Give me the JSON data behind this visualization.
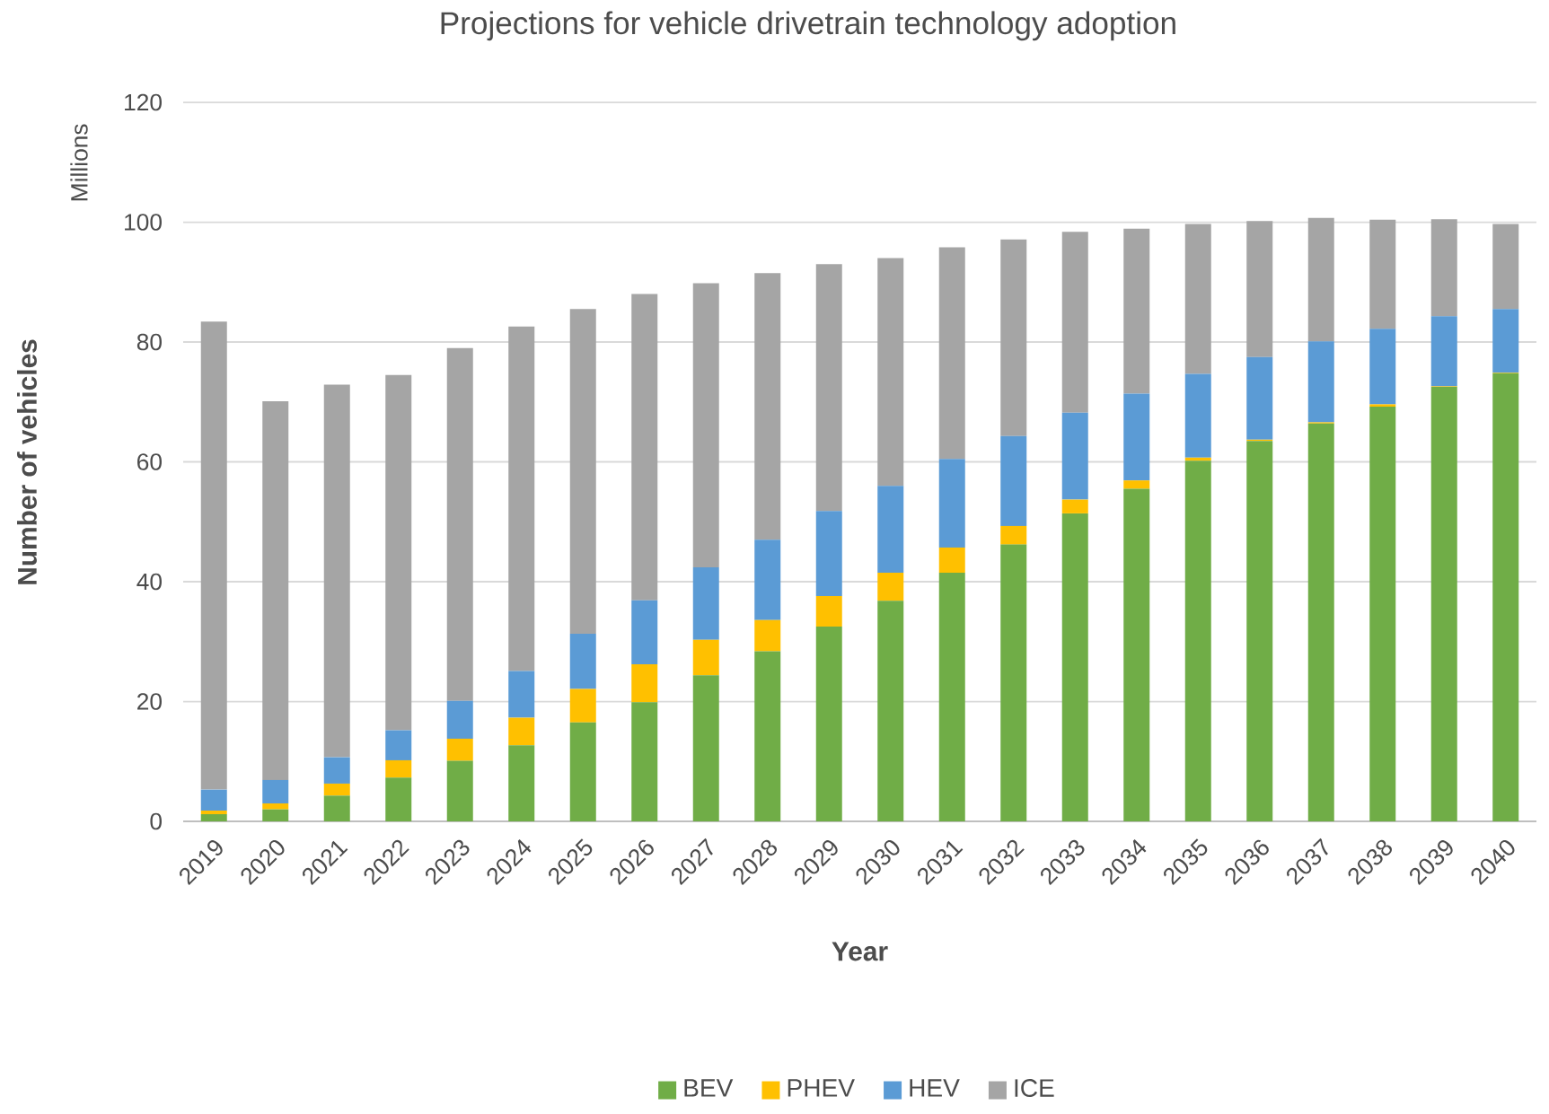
{
  "chart_data": {
    "type": "bar",
    "stacked": true,
    "title": "Projections for vehicle drivetrain technology adoption",
    "xlabel": "Year",
    "ylabel": "Number of vehicles",
    "annotations": [
      "Millions"
    ],
    "categories": [
      "2019",
      "2020",
      "2021",
      "2022",
      "2023",
      "2024",
      "2025",
      "2026",
      "2027",
      "2028",
      "2029",
      "2030",
      "2031",
      "2032",
      "2033",
      "2034",
      "2035",
      "2036",
      "2037",
      "2038",
      "2039",
      "2040"
    ],
    "series": [
      {
        "name": "BEV",
        "color": "#70ad47",
        "values": [
          1.2,
          2.0,
          4.3,
          7.3,
          10.1,
          12.7,
          16.5,
          19.9,
          24.4,
          28.4,
          32.5,
          36.8,
          41.5,
          46.2,
          51.4,
          55.5,
          60.2,
          63.5,
          66.4,
          69.2,
          72.5,
          74.8
        ]
      },
      {
        "name": "PHEV",
        "color": "#ffc000",
        "values": [
          0.6,
          1.0,
          2.0,
          2.9,
          3.7,
          4.6,
          5.6,
          6.3,
          5.9,
          5.2,
          5.1,
          4.7,
          4.2,
          3.1,
          2.3,
          1.4,
          0.5,
          0.2,
          0.2,
          0.4,
          0.1,
          0.1
        ]
      },
      {
        "name": "HEV",
        "color": "#5b9bd5",
        "values": [
          3.5,
          3.9,
          4.4,
          5.0,
          6.3,
          7.8,
          9.2,
          10.7,
          12.1,
          13.4,
          14.2,
          14.5,
          14.8,
          15.0,
          14.5,
          14.5,
          14.0,
          13.8,
          13.5,
          12.6,
          11.7,
          10.6
        ]
      },
      {
        "name": "ICE",
        "color": "#a5a5a5",
        "values": [
          78.1,
          63.2,
          62.2,
          59.3,
          58.9,
          57.5,
          54.2,
          51.1,
          47.4,
          44.5,
          41.2,
          38.0,
          35.3,
          32.8,
          30.2,
          27.5,
          25.0,
          22.7,
          20.6,
          18.2,
          16.2,
          14.2
        ]
      }
    ],
    "ylim": [
      0,
      120
    ],
    "yticks": [
      0,
      20,
      40,
      60,
      80,
      100,
      120
    ],
    "grid": "y",
    "legend": "bottom"
  }
}
